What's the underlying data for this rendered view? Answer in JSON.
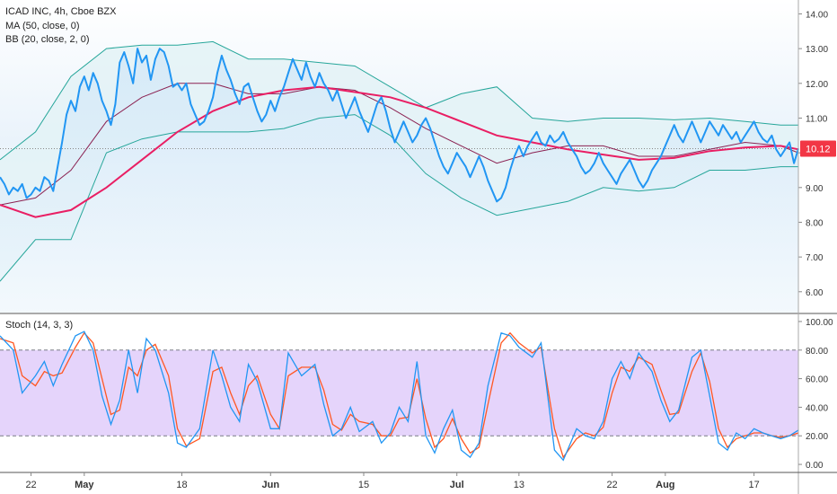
{
  "chart_data": [
    {
      "type": "line",
      "panel": "price",
      "title": "ICAD INC, 4h, Cboe BZX",
      "legend": [
        "MA (50, close, 0)",
        "BB (20, close, 2, 0)"
      ],
      "ylim": [
        5.4,
        14.4
      ],
      "y_ticks": [
        "14.00",
        "13.00",
        "12.00",
        "11.00",
        "10.00",
        "9.00",
        "8.00",
        "7.00",
        "6.00"
      ],
      "last_price_label": "10.12",
      "last_price": 10.12,
      "x_range": [
        0,
        180
      ],
      "colors": {
        "price": "#2196F3",
        "ma": "#E91E63",
        "bb_band": "#26A69A",
        "bb_basis": "#8B2252",
        "bb_fill": "#E3F2F6",
        "last_price_badge": "#F23645"
      },
      "series": [
        {
          "key": "price",
          "x": [
            0,
            1,
            2,
            3,
            4,
            5,
            6,
            7,
            8,
            9,
            10,
            11,
            12,
            13,
            14,
            15,
            16,
            17,
            18,
            19,
            20,
            21,
            22,
            23,
            24,
            25,
            26,
            27,
            28,
            29,
            30,
            31,
            32,
            33,
            34,
            35,
            36,
            37,
            38,
            39,
            40,
            41,
            42,
            43,
            44,
            45,
            46,
            47,
            48,
            49,
            50,
            51,
            52,
            53,
            54,
            55,
            56,
            57,
            58,
            59,
            60,
            61,
            62,
            63,
            64,
            65,
            66,
            67,
            68,
            69,
            70,
            71,
            72,
            73,
            74,
            75,
            76,
            77,
            78,
            79,
            80,
            81,
            82,
            83,
            84,
            85,
            86,
            87,
            88,
            89,
            90,
            91,
            92,
            93,
            94,
            95,
            96,
            97,
            98,
            99,
            100,
            101,
            102,
            103,
            104,
            105,
            106,
            107,
            108,
            109,
            110,
            111,
            112,
            113,
            114,
            115,
            116,
            117,
            118,
            119,
            120,
            121,
            122,
            123,
            124,
            125,
            126,
            127,
            128,
            129,
            130,
            131,
            132,
            133,
            134,
            135,
            136,
            137,
            138,
            139,
            140,
            141,
            142,
            143,
            144,
            145,
            146,
            147,
            148,
            149,
            150,
            151,
            152,
            153,
            154,
            155,
            156,
            157,
            158,
            159,
            160,
            161,
            162,
            163,
            164,
            165,
            166,
            167,
            168,
            169,
            170,
            171,
            172,
            173,
            174,
            175,
            176,
            177,
            178,
            179,
            180
          ],
          "values": [
            9.3,
            9.1,
            8.8,
            9.0,
            8.9,
            9.1,
            8.7,
            8.8,
            9.0,
            8.9,
            9.3,
            9.2,
            8.9,
            9.6,
            10.3,
            11.1,
            11.5,
            11.2,
            11.9,
            12.2,
            11.8,
            12.3,
            12.0,
            11.5,
            11.2,
            10.8,
            11.4,
            12.6,
            12.9,
            12.5,
            12.0,
            13.0,
            12.6,
            12.8,
            12.1,
            12.7,
            13.0,
            12.9,
            12.5,
            11.9,
            12.0,
            11.8,
            12.0,
            11.4,
            11.1,
            10.8,
            10.9,
            11.2,
            11.6,
            12.3,
            12.8,
            12.4,
            12.1,
            11.7,
            11.4,
            11.9,
            12.0,
            11.6,
            11.2,
            10.9,
            11.1,
            11.5,
            11.2,
            11.6,
            11.9,
            12.3,
            12.7,
            12.4,
            12.1,
            12.6,
            12.2,
            11.9,
            12.3,
            12.0,
            11.8,
            11.5,
            11.8,
            11.4,
            11.0,
            11.3,
            11.6,
            11.2,
            10.9,
            10.6,
            11.0,
            11.4,
            11.6,
            11.2,
            10.7,
            10.3,
            10.6,
            10.9,
            10.6,
            10.3,
            10.5,
            10.8,
            11.0,
            10.7,
            10.3,
            9.9,
            9.6,
            9.4,
            9.7,
            10.0,
            9.8,
            9.6,
            9.3,
            9.6,
            9.9,
            9.6,
            9.2,
            8.9,
            8.6,
            8.7,
            9.0,
            9.5,
            9.9,
            10.2,
            9.9,
            10.2,
            10.4,
            10.6,
            10.3,
            10.2,
            10.5,
            10.3,
            10.4,
            10.6,
            10.3,
            10.1,
            9.9,
            9.6,
            9.4,
            9.5,
            9.7,
            10.0,
            9.7,
            9.5,
            9.3,
            9.1,
            9.4,
            9.6,
            9.8,
            9.5,
            9.2,
            9.0,
            9.2,
            9.5,
            9.7,
            9.9,
            10.2,
            10.5,
            10.8,
            10.5,
            10.3,
            10.6,
            10.9,
            10.6,
            10.3,
            10.6,
            10.9,
            10.7,
            10.5,
            10.8,
            10.6,
            10.4,
            10.6,
            10.3,
            10.5,
            10.7,
            10.9,
            10.6,
            10.4,
            10.3,
            10.5,
            10.1,
            9.9,
            10.1,
            10.3,
            9.7,
            10.12
          ]
        },
        {
          "key": "ma",
          "x": [
            0,
            8,
            16,
            24,
            32,
            40,
            48,
            56,
            64,
            72,
            80,
            88,
            96,
            104,
            112,
            120,
            128,
            136,
            144,
            152,
            160,
            168,
            176,
            180
          ],
          "values": [
            8.5,
            8.15,
            8.35,
            9.0,
            9.8,
            10.6,
            11.2,
            11.6,
            11.8,
            11.9,
            11.75,
            11.6,
            11.3,
            10.9,
            10.5,
            10.3,
            10.1,
            9.95,
            9.8,
            9.85,
            10.05,
            10.15,
            10.2,
            10.1
          ]
        },
        {
          "key": "bb_upper",
          "x": [
            0,
            8,
            16,
            24,
            32,
            40,
            48,
            56,
            64,
            72,
            80,
            88,
            96,
            104,
            112,
            120,
            128,
            136,
            144,
            152,
            160,
            168,
            176,
            180
          ],
          "values": [
            9.8,
            10.6,
            12.2,
            13.0,
            13.1,
            13.1,
            13.2,
            12.7,
            12.7,
            12.6,
            12.5,
            11.9,
            11.3,
            11.7,
            11.9,
            11.0,
            10.9,
            11.0,
            11.0,
            10.95,
            11.0,
            10.9,
            10.8,
            10.8
          ]
        },
        {
          "key": "bb_basis",
          "x": [
            0,
            8,
            16,
            24,
            32,
            40,
            48,
            56,
            64,
            72,
            80,
            88,
            96,
            104,
            112,
            120,
            128,
            136,
            144,
            152,
            160,
            168,
            176,
            180
          ],
          "values": [
            8.5,
            8.7,
            9.5,
            10.9,
            11.6,
            12.0,
            12.0,
            11.7,
            11.7,
            11.9,
            11.8,
            11.3,
            10.7,
            10.2,
            9.7,
            10.0,
            10.2,
            10.2,
            9.9,
            9.9,
            10.1,
            10.3,
            10.2,
            10.0
          ]
        },
        {
          "key": "bb_lower",
          "x": [
            0,
            8,
            16,
            24,
            32,
            40,
            48,
            56,
            64,
            72,
            80,
            88,
            96,
            104,
            112,
            120,
            128,
            136,
            144,
            152,
            160,
            168,
            176,
            180
          ],
          "values": [
            6.3,
            7.5,
            7.5,
            10.0,
            10.4,
            10.6,
            10.6,
            10.6,
            10.7,
            11.0,
            11.1,
            10.5,
            9.4,
            8.7,
            8.2,
            8.4,
            8.6,
            9.0,
            8.9,
            9.0,
            9.5,
            9.5,
            9.6,
            9.6
          ]
        }
      ]
    },
    {
      "type": "line",
      "panel": "stochastic",
      "title": "Stoch (14, 3, 3)",
      "ylim": [
        -5,
        105
      ],
      "y_ticks": [
        "100.00",
        "80.00",
        "60.00",
        "40.00",
        "20.00",
        "0.00"
      ],
      "band": [
        20,
        80
      ],
      "colors": {
        "k": "#2196F3",
        "d": "#FF5722",
        "band_fill": "#E1CCFA",
        "band_line": "#787B86"
      },
      "series": [
        {
          "key": "k",
          "x": [
            0,
            3,
            5,
            8,
            10,
            12,
            14,
            17,
            19,
            21,
            23,
            25,
            27,
            29,
            31,
            33,
            35,
            38,
            40,
            42,
            45,
            48,
            50,
            52,
            54,
            56,
            58,
            61,
            63,
            65,
            68,
            71,
            73,
            75,
            77,
            79,
            81,
            84,
            86,
            88,
            90,
            92,
            94,
            96,
            98,
            100,
            102,
            104,
            106,
            108,
            110,
            113,
            115,
            117,
            120,
            122,
            125,
            127,
            130,
            132,
            134,
            136,
            138,
            140,
            142,
            144,
            147,
            149,
            151,
            153,
            156,
            158,
            160,
            162,
            164,
            166,
            168,
            170,
            172,
            174,
            176,
            178,
            180
          ],
          "values": [
            90,
            80,
            50,
            62,
            72,
            55,
            70,
            90,
            93,
            80,
            48,
            28,
            45,
            80,
            50,
            88,
            80,
            50,
            15,
            12,
            25,
            80,
            62,
            40,
            30,
            70,
            58,
            25,
            25,
            78,
            62,
            70,
            42,
            20,
            25,
            40,
            23,
            30,
            15,
            22,
            40,
            30,
            72,
            20,
            8,
            25,
            38,
            10,
            5,
            15,
            55,
            92,
            90,
            82,
            75,
            85,
            10,
            3,
            25,
            20,
            18,
            30,
            60,
            72,
            60,
            78,
            65,
            45,
            30,
            38,
            75,
            80,
            48,
            15,
            10,
            22,
            18,
            25,
            22,
            20,
            18,
            20,
            24
          ]
        },
        {
          "key": "d",
          "x": [
            0,
            3,
            5,
            8,
            10,
            12,
            14,
            17,
            19,
            21,
            23,
            25,
            27,
            29,
            31,
            33,
            35,
            38,
            40,
            42,
            45,
            48,
            50,
            52,
            54,
            56,
            58,
            61,
            63,
            65,
            68,
            71,
            73,
            75,
            77,
            79,
            81,
            84,
            86,
            88,
            90,
            92,
            94,
            96,
            98,
            100,
            102,
            104,
            106,
            108,
            110,
            113,
            115,
            117,
            120,
            122,
            125,
            127,
            130,
            132,
            134,
            136,
            138,
            140,
            142,
            144,
            147,
            149,
            151,
            153,
            156,
            158,
            160,
            162,
            164,
            166,
            168,
            170,
            172,
            174,
            176,
            178,
            180
          ],
          "values": [
            88,
            85,
            62,
            55,
            65,
            62,
            64,
            82,
            92,
            85,
            60,
            35,
            38,
            68,
            62,
            80,
            84,
            62,
            25,
            13,
            18,
            65,
            68,
            50,
            35,
            55,
            62,
            35,
            25,
            62,
            68,
            68,
            52,
            28,
            24,
            35,
            30,
            28,
            20,
            20,
            32,
            33,
            60,
            32,
            12,
            18,
            32,
            18,
            8,
            12,
            42,
            85,
            92,
            85,
            78,
            82,
            25,
            5,
            18,
            22,
            20,
            26,
            50,
            68,
            65,
            75,
            70,
            52,
            35,
            36,
            65,
            78,
            58,
            25,
            12,
            18,
            20,
            22,
            22,
            20,
            19,
            20,
            22
          ]
        }
      ]
    }
  ],
  "x_axis": {
    "ticks": [
      {
        "x": 7,
        "label": "22",
        "bold": false
      },
      {
        "x": 19,
        "label": "May",
        "bold": true
      },
      {
        "x": 41,
        "label": "18",
        "bold": false
      },
      {
        "x": 61,
        "label": "Jun",
        "bold": true
      },
      {
        "x": 82,
        "label": "15",
        "bold": false
      },
      {
        "x": 103,
        "label": "Jul",
        "bold": true
      },
      {
        "x": 117,
        "label": "13",
        "bold": false
      },
      {
        "x": 138,
        "label": "22",
        "bold": false
      },
      {
        "x": 150,
        "label": "Aug",
        "bold": true
      },
      {
        "x": 170,
        "label": "17",
        "bold": false
      }
    ]
  }
}
